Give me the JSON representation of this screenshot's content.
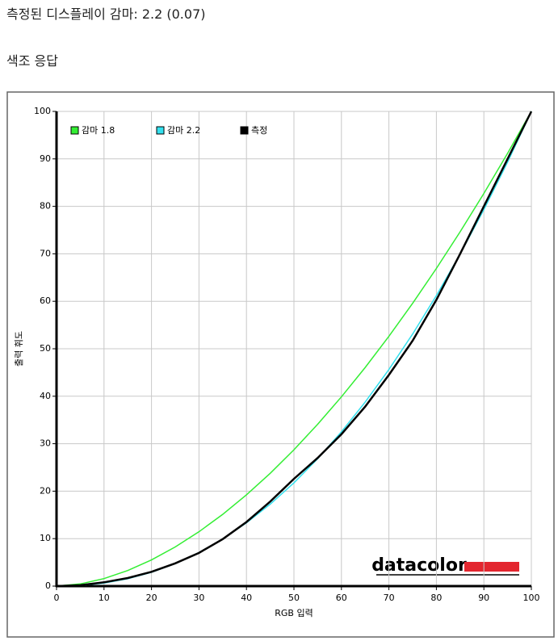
{
  "header": {
    "title": "측정된 디스플레이 감마: 2.2 (0.07)",
    "section": "색조 응답"
  },
  "chart_data": {
    "type": "line",
    "xlabel": "RGB 입력",
    "ylabel": "출력 휘도",
    "logo": "datacolor",
    "x": [
      0,
      5,
      10,
      15,
      20,
      25,
      30,
      35,
      40,
      45,
      50,
      55,
      60,
      65,
      70,
      75,
      80,
      85,
      90,
      95,
      100
    ],
    "series": [
      {
        "name": "감마 1.8",
        "color": "#33ee33",
        "values": [
          0,
          0.46,
          1.58,
          3.29,
          5.52,
          8.25,
          11.45,
          15.11,
          19.22,
          23.76,
          28.72,
          34.1,
          39.87,
          46.05,
          52.62,
          59.58,
          66.92,
          74.64,
          82.72,
          91.18,
          100
        ]
      },
      {
        "name": "감마 2.2",
        "color": "#33e0ee",
        "values": [
          0,
          0.14,
          0.63,
          1.54,
          2.9,
          4.74,
          7.07,
          9.93,
          13.32,
          17.26,
          21.76,
          26.84,
          32.5,
          38.76,
          45.63,
          53.11,
          61.21,
          69.94,
          79.31,
          89.33,
          100
        ]
      },
      {
        "name": "측정",
        "color": "#000000",
        "values": [
          0,
          0.2,
          0.8,
          1.7,
          3.0,
          4.8,
          7.0,
          9.9,
          13.5,
          17.8,
          22.6,
          27.0,
          32.0,
          37.8,
          44.5,
          51.7,
          60.3,
          70.0,
          80.0,
          90.0,
          100
        ]
      }
    ],
    "xlim": [
      0,
      100
    ],
    "ylim": [
      0,
      100
    ],
    "xticks": [
      0,
      10,
      20,
      30,
      40,
      50,
      60,
      70,
      80,
      90,
      100
    ],
    "yticks": [
      0,
      10,
      20,
      30,
      40,
      50,
      60,
      70,
      80,
      90,
      100
    ],
    "grid": true,
    "legend": "upper left"
  }
}
